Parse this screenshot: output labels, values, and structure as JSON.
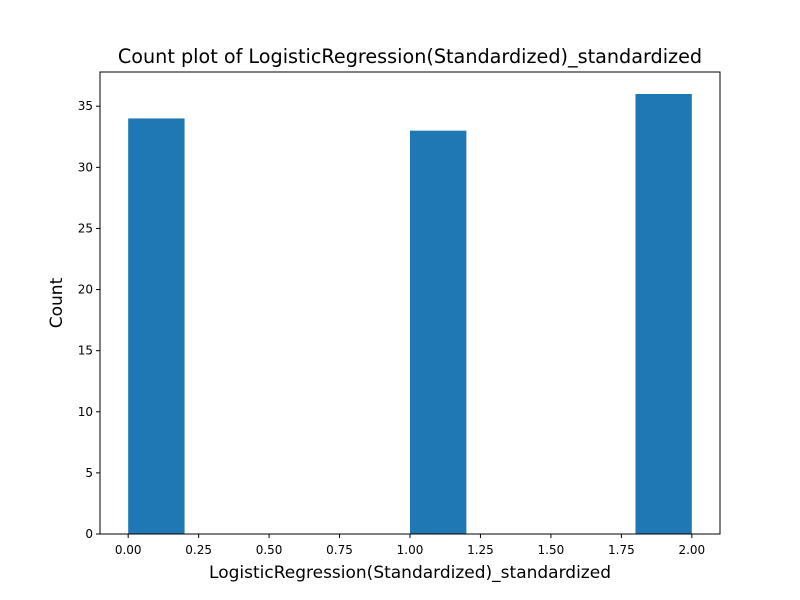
{
  "chart_data": {
    "type": "bar",
    "title": "Count plot of LogisticRegression(Standardized)_standardized",
    "xlabel": "LogisticRegression(Standardized)_standardized",
    "ylabel": "Count",
    "bins": [
      {
        "x0": 0.0,
        "x1": 0.2,
        "count": 34
      },
      {
        "x0": 1.0,
        "x1": 1.2,
        "count": 33
      },
      {
        "x0": 1.8,
        "x1": 2.0,
        "count": 36
      }
    ],
    "xlim": [
      -0.1,
      2.1
    ],
    "ylim": [
      0,
      37.8
    ],
    "xticks": [
      "0.00",
      "0.25",
      "0.50",
      "0.75",
      "1.00",
      "1.25",
      "1.50",
      "1.75",
      "2.00"
    ],
    "yticks": [
      "0",
      "5",
      "10",
      "15",
      "20",
      "25",
      "30",
      "35"
    ],
    "grid": false,
    "legend": false,
    "bar_color": "#1f77b4"
  }
}
